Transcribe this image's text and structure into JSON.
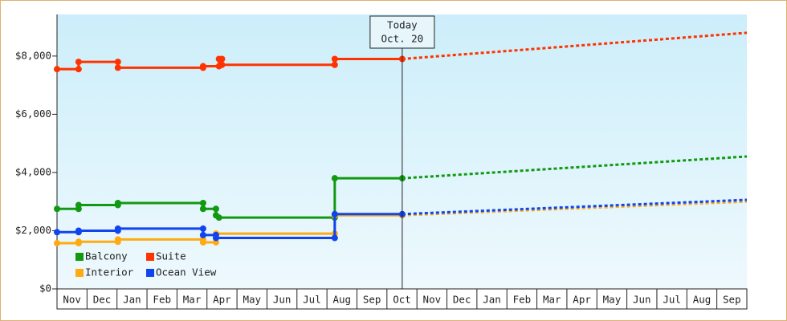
{
  "chart_data": {
    "type": "line",
    "categories": [
      "Nov",
      "Dec",
      "Jan",
      "Feb",
      "Mar",
      "Apr",
      "May",
      "Jun",
      "Jul",
      "Aug",
      "Sep",
      "Oct",
      "Nov",
      "Dec",
      "Jan",
      "Feb",
      "Mar",
      "Apr",
      "May",
      "Jun",
      "Jul",
      "Aug",
      "Sep"
    ],
    "xlim": [
      0,
      23
    ],
    "ylim": [
      0,
      9430
    ],
    "yticks": [
      {
        "value": 0,
        "label": "$0"
      },
      {
        "value": 2000,
        "label": "$2,000"
      },
      {
        "value": 4000,
        "label": "$4,000"
      },
      {
        "value": 6000,
        "label": "$6,000"
      },
      {
        "value": 8000,
        "label": "$8,000"
      }
    ],
    "annotation": {
      "label": [
        "Today",
        "Oct. 20"
      ],
      "x": 11.51
    },
    "series": [
      {
        "name": "Balcony",
        "color": "#119911",
        "x": [
          0,
          0.72,
          0.72,
          2.03,
          2.03,
          4.87,
          4.87,
          5.3,
          5.3,
          5.4,
          9.26,
          9.26,
          11.51
        ],
        "values": [
          2750,
          2750,
          2880,
          2880,
          2950,
          2950,
          2750,
          2750,
          2530,
          2450,
          2450,
          3800,
          3800
        ],
        "forecast": {
          "x": [
            11.51,
            23
          ],
          "values": [
            3800,
            4550
          ]
        }
      },
      {
        "name": "Suite",
        "color": "#ff3300",
        "x": [
          0,
          0.72,
          0.72,
          2.03,
          2.03,
          4.87,
          4.87,
          5.4,
          5.4,
          5.5,
          5.5,
          9.26,
          9.26,
          11.51
        ],
        "values": [
          7550,
          7550,
          7800,
          7800,
          7600,
          7600,
          7650,
          7650,
          7900,
          7900,
          7700,
          7700,
          7900,
          7900
        ],
        "forecast": {
          "x": [
            11.51,
            23
          ],
          "values": [
            7900,
            8800
          ]
        }
      },
      {
        "name": "Interior",
        "color": "#ffaa11",
        "x": [
          0,
          0.72,
          0.72,
          2.03,
          2.03,
          4.87,
          4.87,
          5.3,
          5.3,
          9.26,
          9.26,
          11.51
        ],
        "values": [
          1570,
          1570,
          1620,
          1620,
          1700,
          1700,
          1600,
          1600,
          1900,
          1900,
          2530,
          2530
        ],
        "forecast": {
          "x": [
            11.51,
            23
          ],
          "values": [
            2530,
            3000
          ]
        }
      },
      {
        "name": "Ocean View",
        "color": "#1144ee",
        "x": [
          0,
          0.72,
          0.72,
          2.03,
          2.03,
          4.87,
          4.87,
          5.3,
          5.3,
          9.26,
          9.26,
          11.51
        ],
        "values": [
          1950,
          1950,
          2000,
          2000,
          2070,
          2070,
          1850,
          1850,
          1750,
          1750,
          2570,
          2570
        ],
        "forecast": {
          "x": [
            11.51,
            23
          ],
          "values": [
            2570,
            3060
          ]
        }
      }
    ]
  }
}
